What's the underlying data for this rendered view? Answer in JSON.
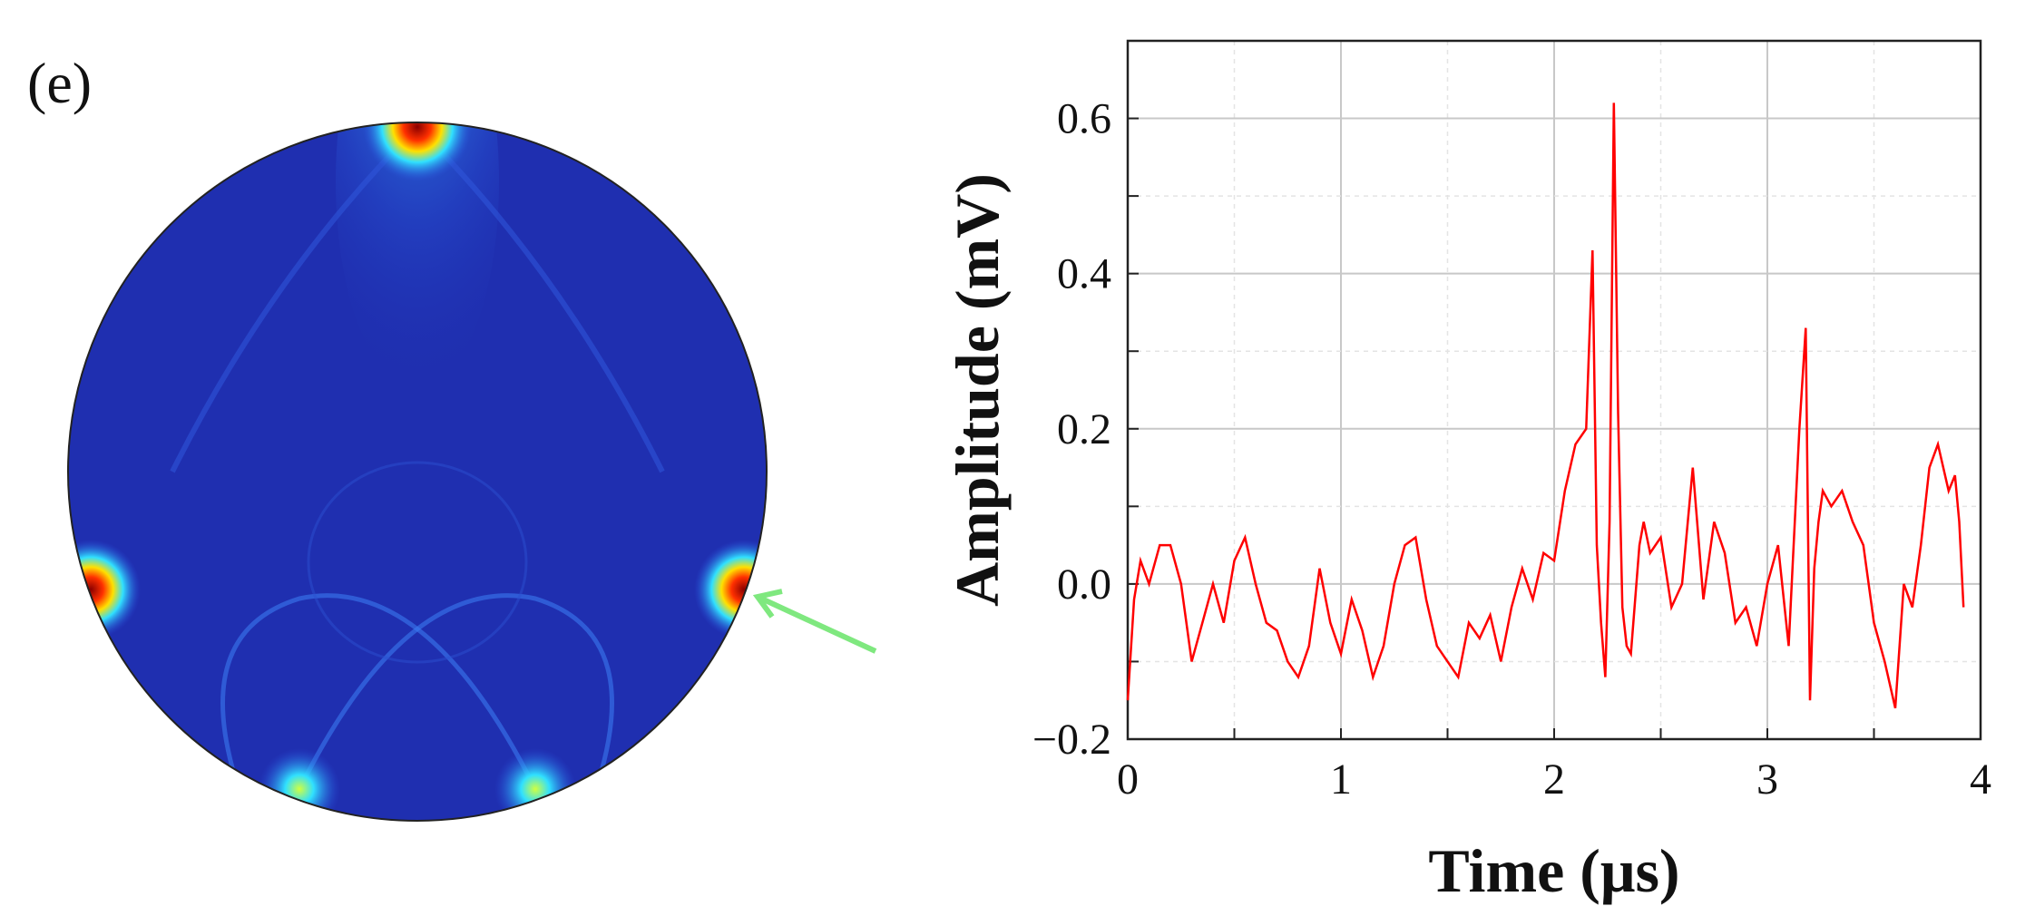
{
  "panel_label": "(e)",
  "colors": {
    "field_background": "#1f2fb0",
    "field_hot": "#8a0000",
    "trace": "#ff0000",
    "arrow": "#7fe87f",
    "grid": "#cfcfcf"
  },
  "chart_data": {
    "type": "line",
    "xlabel": "Time (μs)",
    "ylabel": "Amplitude (mV)",
    "xlim": [
      0,
      4
    ],
    "ylim": [
      -0.2,
      0.7
    ],
    "xticks": [
      "0",
      "1",
      "2",
      "3",
      "4"
    ],
    "yticks": [
      "−0.2",
      "0.0",
      "0.2",
      "0.4",
      "0.6"
    ],
    "ytick_values": [
      -0.2,
      0.0,
      0.2,
      0.4,
      0.6
    ],
    "grid": true,
    "series": [
      {
        "x": [
          0.0,
          0.03,
          0.06,
          0.1,
          0.15,
          0.2,
          0.25,
          0.3,
          0.35,
          0.4,
          0.45,
          0.5,
          0.55,
          0.6,
          0.65,
          0.7,
          0.75,
          0.8,
          0.85,
          0.9,
          0.95,
          1.0,
          1.05,
          1.1,
          1.15,
          1.2,
          1.25,
          1.3,
          1.35,
          1.4,
          1.45,
          1.5,
          1.55,
          1.6,
          1.65,
          1.7,
          1.75,
          1.8,
          1.85,
          1.9,
          1.95,
          2.0,
          2.05,
          2.1,
          2.15,
          2.18,
          2.2,
          2.22,
          2.24,
          2.26,
          2.28,
          2.3,
          2.32,
          2.34,
          2.36,
          2.38,
          2.4,
          2.42,
          2.45,
          2.5,
          2.55,
          2.6,
          2.65,
          2.7,
          2.75,
          2.8,
          2.85,
          2.9,
          2.95,
          3.0,
          3.05,
          3.1,
          3.15,
          3.18,
          3.2,
          3.22,
          3.24,
          3.26,
          3.3,
          3.35,
          3.4,
          3.45,
          3.5,
          3.55,
          3.6,
          3.64,
          3.68,
          3.72,
          3.76,
          3.8,
          3.85,
          3.88,
          3.9,
          3.92
        ],
        "y": [
          -0.15,
          -0.02,
          0.03,
          0.0,
          0.05,
          0.05,
          0.0,
          -0.1,
          -0.05,
          0.0,
          -0.05,
          0.03,
          0.06,
          0.0,
          -0.05,
          -0.06,
          -0.1,
          -0.12,
          -0.08,
          0.02,
          -0.05,
          -0.09,
          -0.02,
          -0.06,
          -0.12,
          -0.08,
          0.0,
          0.05,
          0.06,
          -0.02,
          -0.08,
          -0.1,
          -0.12,
          -0.05,
          -0.07,
          -0.04,
          -0.1,
          -0.03,
          0.02,
          -0.02,
          0.04,
          0.03,
          0.12,
          0.18,
          0.2,
          0.43,
          0.05,
          -0.05,
          -0.12,
          0.08,
          0.62,
          0.22,
          -0.03,
          -0.08,
          -0.09,
          -0.02,
          0.05,
          0.08,
          0.04,
          0.06,
          -0.03,
          0.0,
          0.15,
          -0.02,
          0.08,
          0.04,
          -0.05,
          -0.03,
          -0.08,
          0.0,
          0.05,
          -0.08,
          0.2,
          0.33,
          -0.15,
          0.02,
          0.08,
          0.12,
          0.1,
          0.12,
          0.08,
          0.05,
          -0.05,
          -0.1,
          -0.16,
          0.0,
          -0.03,
          0.05,
          0.15,
          0.18,
          0.12,
          0.14,
          0.08,
          -0.03
        ]
      }
    ]
  }
}
